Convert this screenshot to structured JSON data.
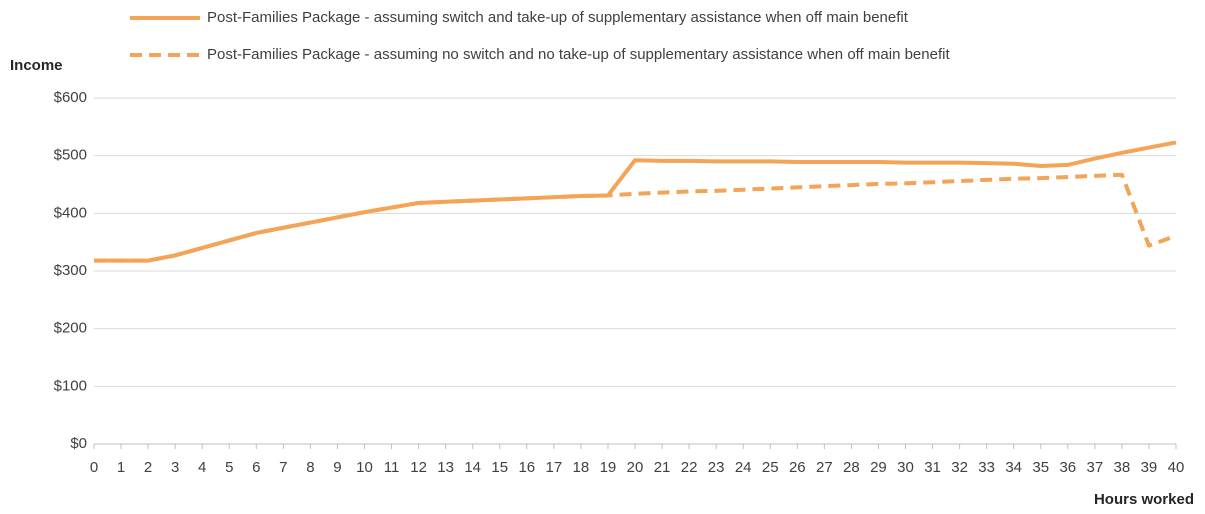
{
  "chart_data": {
    "type": "line",
    "legend": "top",
    "ylabel": "Income",
    "xlabel": "Hours worked",
    "x": [
      0,
      1,
      2,
      3,
      4,
      5,
      6,
      7,
      8,
      9,
      10,
      11,
      12,
      13,
      14,
      15,
      16,
      17,
      18,
      19,
      20,
      21,
      22,
      23,
      24,
      25,
      26,
      27,
      28,
      29,
      30,
      31,
      32,
      33,
      34,
      35,
      36,
      37,
      38,
      39,
      40
    ],
    "xlim": [
      0,
      40
    ],
    "xticks": [
      0,
      1,
      2,
      3,
      4,
      5,
      6,
      7,
      8,
      9,
      10,
      11,
      12,
      13,
      14,
      15,
      16,
      17,
      18,
      19,
      20,
      21,
      22,
      23,
      24,
      25,
      26,
      27,
      28,
      29,
      30,
      31,
      32,
      33,
      34,
      35,
      36,
      37,
      38,
      39,
      40
    ],
    "ylim": [
      0,
      600
    ],
    "yticks": [
      {
        "value": 0,
        "label": "$0"
      },
      {
        "value": 100,
        "label": "$100"
      },
      {
        "value": 200,
        "label": "$200"
      },
      {
        "value": 300,
        "label": "$300"
      },
      {
        "value": 400,
        "label": "$400"
      },
      {
        "value": 500,
        "label": "$500"
      },
      {
        "value": 600,
        "label": "$600"
      }
    ],
    "grid": true,
    "series": [
      {
        "name": "Post-Families Package - assuming switch and take-up of supplementary assistance when off main benefit",
        "color": "#f4a456",
        "style": "solid",
        "values": [
          318,
          318,
          318,
          327,
          340,
          353,
          366,
          375,
          384,
          393,
          402,
          410,
          418,
          420,
          422,
          424,
          426,
          428,
          430,
          431,
          492,
          491,
          491,
          490,
          490,
          490,
          489,
          489,
          489,
          489,
          488,
          488,
          488,
          487,
          486,
          482,
          484,
          495,
          505,
          514,
          523
        ]
      },
      {
        "name": "Post-Families Package - assuming no switch and no take-up of supplementary assistance when off main benefit",
        "color": "#f4a456",
        "style": "dashed",
        "values": [
          318,
          318,
          318,
          327,
          340,
          353,
          366,
          375,
          384,
          393,
          402,
          410,
          418,
          420,
          422,
          424,
          426,
          428,
          430,
          431,
          434,
          436,
          438,
          439,
          441,
          443,
          445,
          447,
          449,
          451,
          452,
          454,
          456,
          458,
          460,
          461,
          463,
          465,
          467,
          344,
          361
        ]
      }
    ]
  }
}
